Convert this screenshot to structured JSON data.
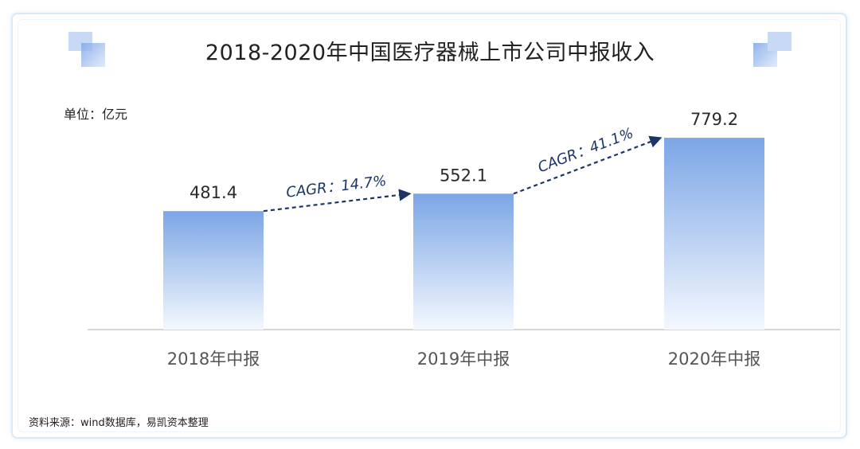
{
  "title": "2018-2020年中国医疗器械上市公司中报收入",
  "unit_label": "单位：亿元",
  "source": "资料来源：wind数据库，易凯资本整理",
  "colors": {
    "bar_top": "#7ca6e6",
    "bar_bottom": "#f4f8fe",
    "arrow": "#1c3566",
    "axis": "#c8c8c8"
  },
  "chart_data": {
    "type": "bar",
    "title": "2018-2020年中国医疗器械上市公司中报收入",
    "ylabel": "单位：亿元",
    "categories": [
      "2018年中报",
      "2019年中报",
      "2020年中报"
    ],
    "values": [
      481.4,
      552.1,
      779.2
    ],
    "value_labels": [
      "481.4",
      "552.1",
      "779.2"
    ],
    "annotations": [
      "CAGR：14.7%",
      "CAGR：41.1%"
    ],
    "grid": false,
    "legend": "none"
  }
}
